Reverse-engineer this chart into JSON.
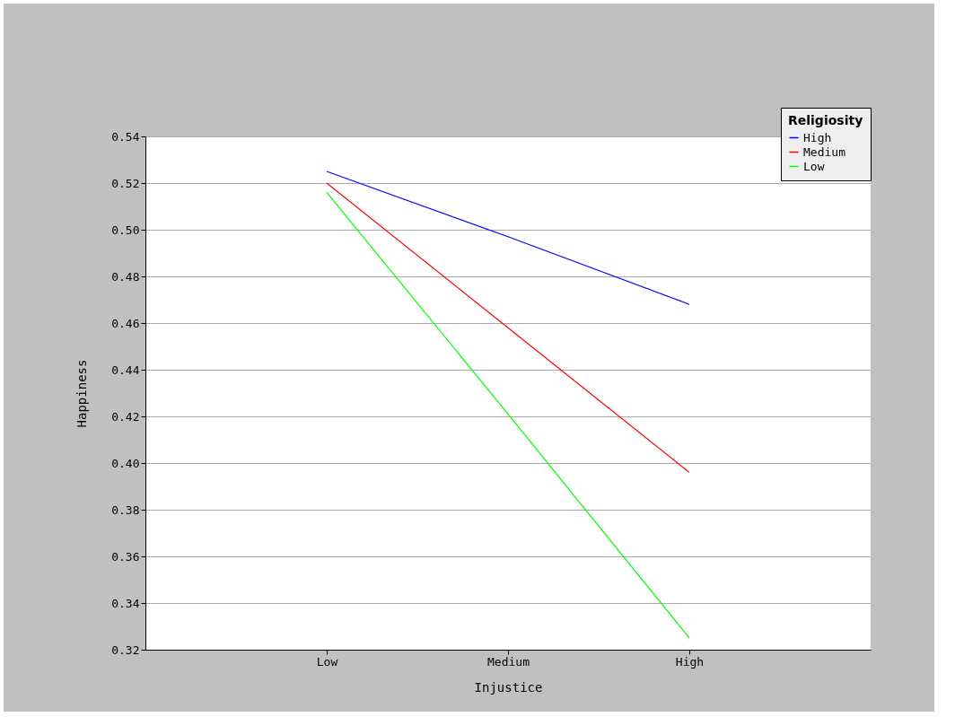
{
  "chart_data": {
    "type": "line",
    "xlabel": "Injustice",
    "ylabel": "Happiness",
    "legend_title": "Religiosity",
    "categories": [
      "Low",
      "Medium",
      "High"
    ],
    "series": [
      {
        "name": "High",
        "color": "#0000ff",
        "values": [
          0.525,
          0.497,
          0.468
        ]
      },
      {
        "name": "Medium",
        "color": "#ff0000",
        "values": [
          0.52,
          0.458,
          0.396
        ]
      },
      {
        "name": "Low",
        "color": "#00ff00",
        "values": [
          0.516,
          0.421,
          0.325
        ]
      }
    ],
    "ylim": [
      0.32,
      0.54
    ],
    "yticks": [
      {
        "value": 0.32,
        "label": "0.32"
      },
      {
        "value": 0.34,
        "label": "0.34"
      },
      {
        "value": 0.36,
        "label": "0.36"
      },
      {
        "value": 0.38,
        "label": "0.38"
      },
      {
        "value": 0.4,
        "label": "0.40"
      },
      {
        "value": 0.42,
        "label": "0.42"
      },
      {
        "value": 0.44,
        "label": "0.44"
      },
      {
        "value": 0.46,
        "label": "0.46"
      },
      {
        "value": 0.48,
        "label": "0.48"
      },
      {
        "value": 0.5,
        "label": "0.50"
      },
      {
        "value": 0.52,
        "label": "0.52"
      },
      {
        "value": 0.54,
        "label": "0.54"
      }
    ],
    "grid": "y",
    "legend": "top right",
    "marker": "none",
    "line_style": "solid"
  }
}
